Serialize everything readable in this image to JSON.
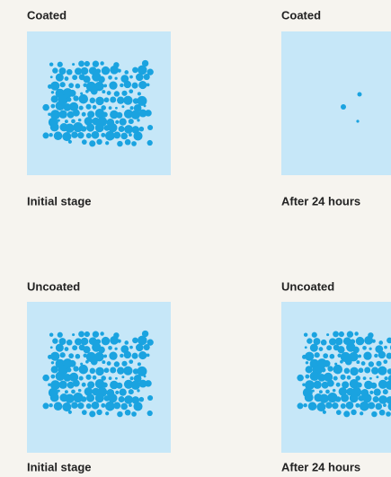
{
  "panels": [
    {
      "label": "Coated",
      "caption": "Initial stage"
    },
    {
      "label": "Coated",
      "caption": "After 24 hours"
    },
    {
      "label": "Uncoated",
      "caption": "Initial stage"
    },
    {
      "label": "Uncoated",
      "caption": "After 24 hours"
    }
  ]
}
